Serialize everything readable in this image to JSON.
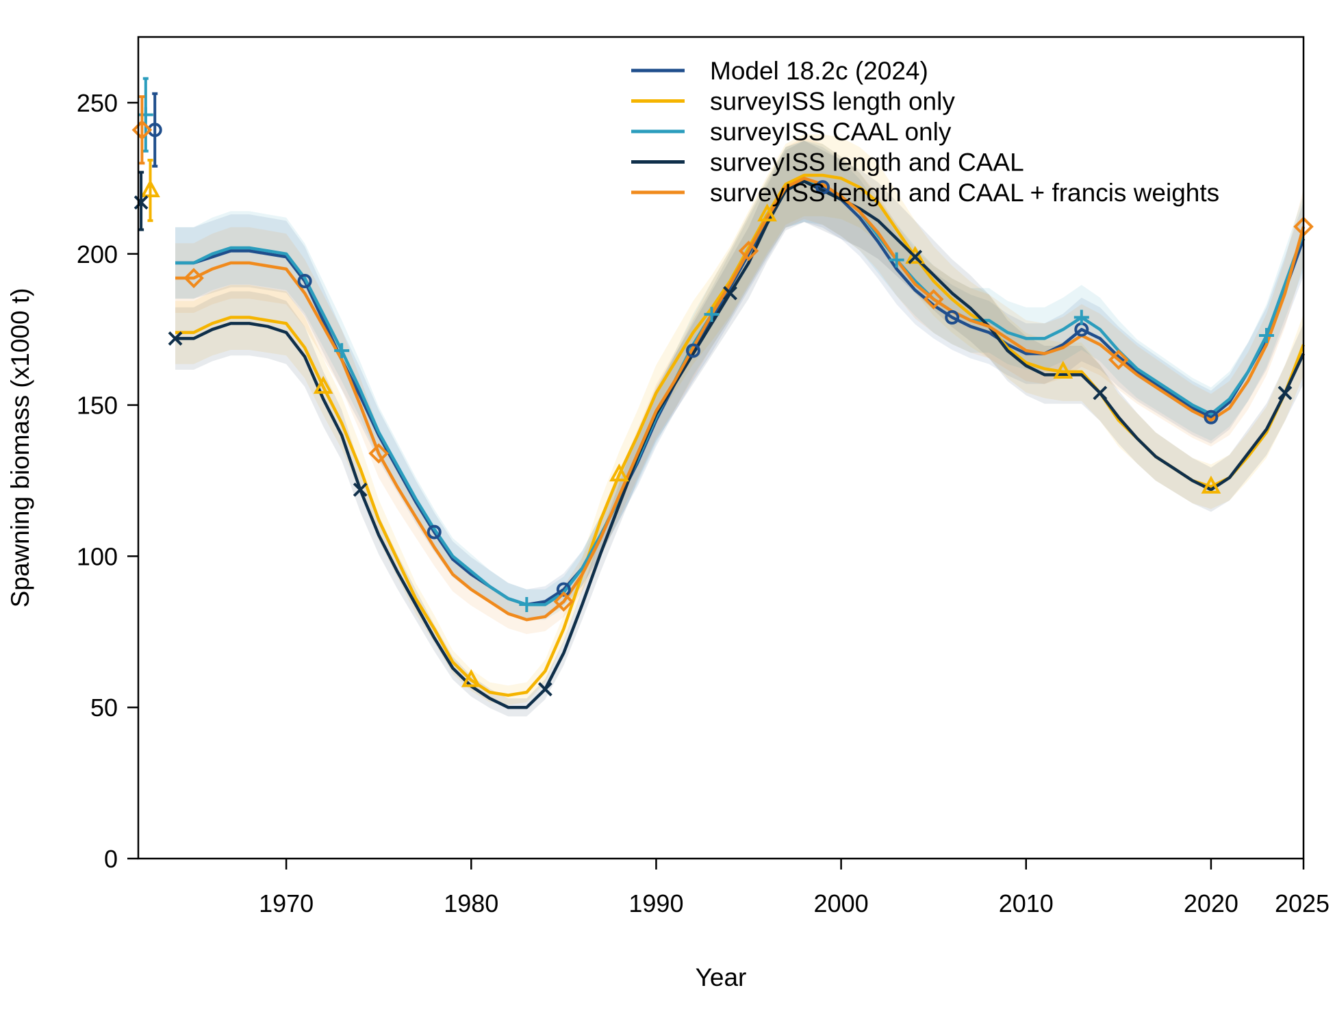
{
  "chart_data": {
    "type": "line",
    "xlabel": "Year",
    "ylabel": "Spawning biomass (x1000 t)",
    "xlim": [
      1962,
      2025
    ],
    "ylim": [
      0,
      250
    ],
    "x_ticks": [
      "1970",
      "1980",
      "1990",
      "2000",
      "2010",
      "2020",
      "2025"
    ],
    "y_ticks": [
      "0",
      "50",
      "100",
      "150",
      "200",
      "250"
    ],
    "legend_position": "top-right",
    "series": [
      {
        "name": "Model 18.2c (2024)",
        "color": "#1f4e8c",
        "marker": "circle",
        "x": [
          1964,
          1965,
          1966,
          1967,
          1968,
          1969,
          1970,
          1971,
          1972,
          1973,
          1974,
          1975,
          1976,
          1977,
          1978,
          1979,
          1980,
          1981,
          1982,
          1983,
          1984,
          1985,
          1986,
          1987,
          1988,
          1989,
          1990,
          1991,
          1992,
          1993,
          1994,
          1995,
          1996,
          1997,
          1998,
          1999,
          2000,
          2001,
          2002,
          2003,
          2004,
          2005,
          2006,
          2007,
          2008,
          2009,
          2010,
          2011,
          2012,
          2013,
          2014,
          2015,
          2016,
          2017,
          2018,
          2019,
          2020,
          2021,
          2022,
          2023,
          2024,
          2025
        ],
        "values": [
          197,
          197,
          199,
          201,
          201,
          200,
          199,
          191,
          178,
          165,
          153,
          140,
          129,
          118,
          108,
          99,
          94,
          90,
          86,
          84,
          85,
          89,
          96,
          107,
          119,
          131,
          145,
          157,
          168,
          178,
          189,
          200,
          211,
          222,
          224,
          222,
          218,
          212,
          204,
          195,
          188,
          183,
          179,
          176,
          174,
          170,
          167,
          167,
          170,
          175,
          172,
          166,
          161,
          157,
          153,
          149,
          146,
          151,
          161,
          172,
          188,
          205
        ],
        "initial": 241,
        "initial_ci": [
          229,
          253
        ]
      },
      {
        "name": "surveyISS length only",
        "color": "#f5b400",
        "marker": "triangle",
        "x": [
          1964,
          1965,
          1966,
          1967,
          1968,
          1969,
          1970,
          1971,
          1972,
          1973,
          1974,
          1975,
          1976,
          1977,
          1978,
          1979,
          1980,
          1981,
          1982,
          1983,
          1984,
          1985,
          1986,
          1987,
          1988,
          1989,
          1990,
          1991,
          1992,
          1993,
          1994,
          1995,
          1996,
          1997,
          1998,
          1999,
          2000,
          2001,
          2002,
          2003,
          2004,
          2005,
          2006,
          2007,
          2008,
          2009,
          2010,
          2011,
          2012,
          2013,
          2014,
          2015,
          2016,
          2017,
          2018,
          2019,
          2020,
          2021,
          2022,
          2023,
          2024,
          2025
        ],
        "values": [
          174,
          174,
          177,
          179,
          179,
          178,
          177,
          169,
          156,
          144,
          129,
          112,
          99,
          86,
          76,
          65,
          59,
          55,
          54,
          55,
          62,
          76,
          94,
          112,
          127,
          140,
          154,
          164,
          174,
          182,
          191,
          202,
          213,
          223,
          226,
          226,
          225,
          222,
          217,
          208,
          199,
          191,
          185,
          180,
          176,
          169,
          164,
          162,
          161,
          161,
          154,
          145,
          139,
          133,
          129,
          125,
          123,
          126,
          133,
          141,
          154,
          170
        ],
        "initial": 221,
        "initial_ci": [
          211,
          231
        ]
      },
      {
        "name": "surveyISS CAAL only",
        "color": "#2b9dbd",
        "marker": "plus",
        "x": [
          1964,
          1965,
          1966,
          1967,
          1968,
          1969,
          1970,
          1971,
          1972,
          1973,
          1974,
          1975,
          1976,
          1977,
          1978,
          1979,
          1980,
          1981,
          1982,
          1983,
          1984,
          1985,
          1986,
          1987,
          1988,
          1989,
          1990,
          1991,
          1992,
          1993,
          1994,
          1995,
          1996,
          1997,
          1998,
          1999,
          2000,
          2001,
          2002,
          2003,
          2004,
          2005,
          2006,
          2007,
          2008,
          2009,
          2010,
          2011,
          2012,
          2013,
          2014,
          2015,
          2016,
          2017,
          2018,
          2019,
          2020,
          2021,
          2022,
          2023,
          2024,
          2025
        ],
        "values": [
          197,
          197,
          200,
          202,
          202,
          201,
          200,
          192,
          180,
          168,
          155,
          141,
          130,
          119,
          109,
          100,
          95,
          90,
          86,
          84,
          84,
          88,
          96,
          107,
          119,
          132,
          146,
          158,
          170,
          180,
          190,
          201,
          212,
          222,
          224,
          223,
          219,
          214,
          206,
          198,
          191,
          185,
          181,
          178,
          178,
          174,
          172,
          172,
          175,
          179,
          175,
          168,
          162,
          158,
          154,
          150,
          147,
          152,
          161,
          173,
          190,
          207
        ],
        "initial": 246,
        "initial_ci": [
          234,
          258
        ]
      },
      {
        "name": "surveyISS length and CAAL",
        "color": "#0f2f4a",
        "marker": "x",
        "x": [
          1964,
          1965,
          1966,
          1967,
          1968,
          1969,
          1970,
          1971,
          1972,
          1973,
          1974,
          1975,
          1976,
          1977,
          1978,
          1979,
          1980,
          1981,
          1982,
          1983,
          1984,
          1985,
          1986,
          1987,
          1988,
          1989,
          1990,
          1991,
          1992,
          1993,
          1994,
          1995,
          1996,
          1997,
          1998,
          1999,
          2000,
          2001,
          2002,
          2003,
          2004,
          2005,
          2006,
          2007,
          2008,
          2009,
          2010,
          2011,
          2012,
          2013,
          2014,
          2015,
          2016,
          2017,
          2018,
          2019,
          2020,
          2021,
          2022,
          2023,
          2024,
          2025
        ],
        "values": [
          172,
          172,
          175,
          177,
          177,
          176,
          174,
          166,
          152,
          140,
          122,
          107,
          95,
          84,
          73,
          63,
          57,
          53,
          50,
          50,
          56,
          68,
          84,
          101,
          117,
          133,
          147,
          157,
          167,
          177,
          187,
          197,
          210,
          221,
          224,
          221,
          218,
          215,
          211,
          205,
          199,
          193,
          187,
          182,
          176,
          168,
          163,
          160,
          160,
          160,
          154,
          146,
          139,
          133,
          129,
          125,
          122,
          126,
          134,
          142,
          154,
          167
        ],
        "initial": 217,
        "initial_ci": [
          208,
          227
        ]
      },
      {
        "name": "surveyISS length and CAAL + francis weights",
        "color": "#f08a1c",
        "marker": "diamond",
        "x": [
          1964,
          1965,
          1966,
          1967,
          1968,
          1969,
          1970,
          1971,
          1972,
          1973,
          1974,
          1975,
          1976,
          1977,
          1978,
          1979,
          1980,
          1981,
          1982,
          1983,
          1984,
          1985,
          1986,
          1987,
          1988,
          1989,
          1990,
          1991,
          1992,
          1993,
          1994,
          1995,
          1996,
          1997,
          1998,
          1999,
          2000,
          2001,
          2002,
          2003,
          2004,
          2005,
          2006,
          2007,
          2008,
          2009,
          2010,
          2011,
          2012,
          2013,
          2014,
          2015,
          2016,
          2017,
          2018,
          2019,
          2020,
          2021,
          2022,
          2023,
          2024,
          2025
        ],
        "values": [
          192,
          192,
          195,
          197,
          197,
          196,
          195,
          187,
          176,
          165,
          150,
          134,
          123,
          113,
          103,
          94,
          89,
          85,
          81,
          79,
          80,
          85,
          94,
          106,
          120,
          134,
          148,
          158,
          169,
          180,
          190,
          201,
          212,
          222,
          225,
          223,
          219,
          214,
          207,
          198,
          190,
          185,
          181,
          178,
          176,
          172,
          168,
          167,
          169,
          173,
          170,
          165,
          160,
          156,
          152,
          148,
          145,
          149,
          158,
          170,
          187,
          209
        ],
        "initial": 241,
        "initial_ci": [
          230,
          252
        ]
      }
    ]
  }
}
